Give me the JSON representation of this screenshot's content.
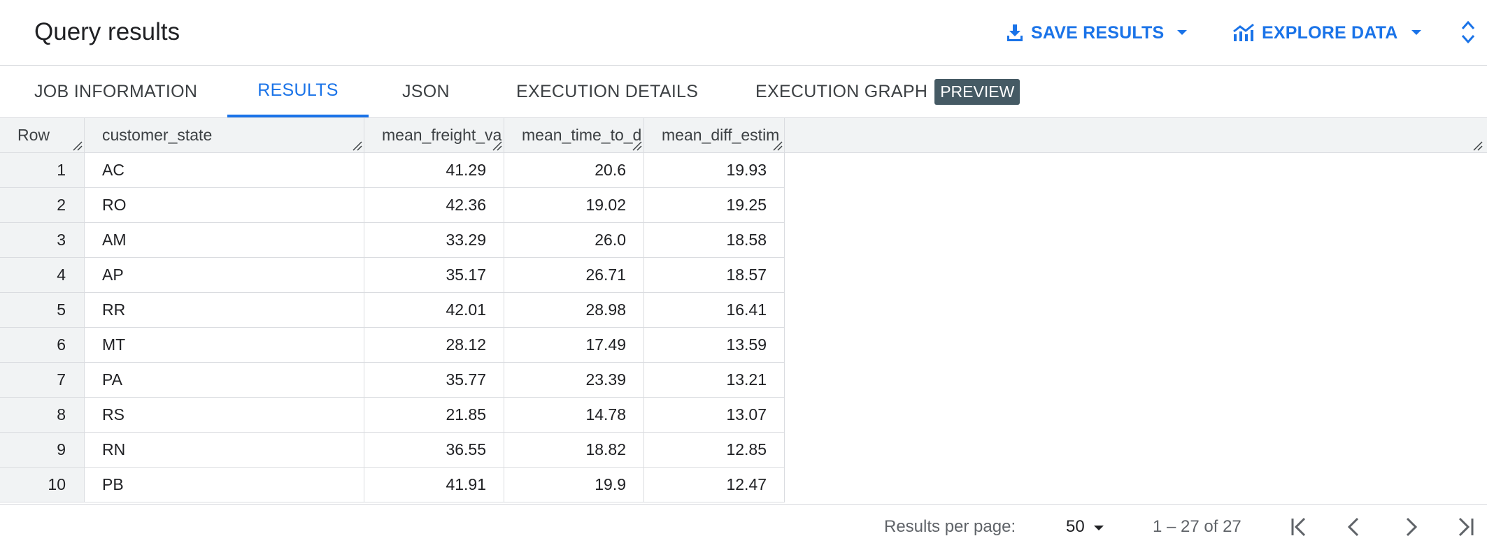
{
  "header": {
    "title": "Query results",
    "save_results_label": "SAVE RESULTS",
    "explore_data_label": "EXPLORE DATA",
    "accent_color": "#1a73e8"
  },
  "tabs": [
    {
      "label": "JOB INFORMATION",
      "active": false
    },
    {
      "label": "RESULTS",
      "active": true
    },
    {
      "label": "JSON",
      "active": false
    },
    {
      "label": "EXECUTION DETAILS",
      "active": false
    },
    {
      "label": "EXECUTION GRAPH",
      "active": false,
      "badge": "PREVIEW"
    }
  ],
  "table": {
    "columns": [
      "Row",
      "customer_state",
      "mean_freight_va",
      "mean_time_to_d",
      "mean_diff_estim"
    ],
    "rows": [
      [
        "1",
        "AC",
        "41.29",
        "20.6",
        "19.93"
      ],
      [
        "2",
        "RO",
        "42.36",
        "19.02",
        "19.25"
      ],
      [
        "3",
        "AM",
        "33.29",
        "26.0",
        "18.58"
      ],
      [
        "4",
        "AP",
        "35.17",
        "26.71",
        "18.57"
      ],
      [
        "5",
        "RR",
        "42.01",
        "28.98",
        "16.41"
      ],
      [
        "6",
        "MT",
        "28.12",
        "17.49",
        "13.59"
      ],
      [
        "7",
        "PA",
        "35.77",
        "23.39",
        "13.21"
      ],
      [
        "8",
        "RS",
        "21.85",
        "14.78",
        "13.07"
      ],
      [
        "9",
        "RN",
        "36.55",
        "18.82",
        "12.85"
      ],
      [
        "10",
        "PB",
        "41.91",
        "19.9",
        "12.47"
      ]
    ]
  },
  "footer": {
    "results_per_page_label": "Results per page:",
    "results_per_page_value": "50",
    "range_text": "1 – 27 of 27"
  }
}
